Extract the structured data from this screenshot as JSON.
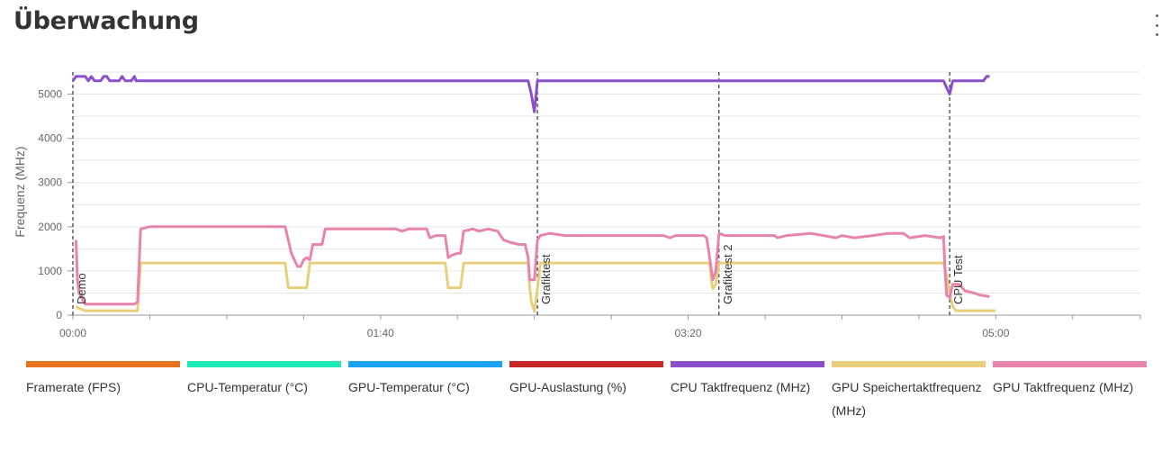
{
  "page": {
    "title": "Überwachung",
    "menu_icon": "more-vertical-icon"
  },
  "chart_data": {
    "type": "line",
    "title": "",
    "xlabel": "",
    "ylabel": "Frequenz (MHz)",
    "x_unit": "seconds",
    "xlim": [
      0,
      347
    ],
    "ylim": [
      0,
      5500
    ],
    "x_ticks": [
      {
        "value": 0,
        "label": "00:00"
      },
      {
        "value": 100,
        "label": "01:40"
      },
      {
        "value": 200,
        "label": "03:20"
      },
      {
        "value": 300,
        "label": "05:00"
      }
    ],
    "y_ticks": [
      {
        "value": 0,
        "label": "0"
      },
      {
        "value": 1000,
        "label": "1000"
      },
      {
        "value": 2000,
        "label": "2000"
      },
      {
        "value": 3000,
        "label": "3000"
      },
      {
        "value": 4000,
        "label": "4000"
      },
      {
        "value": 5000,
        "label": "5000"
      }
    ],
    "grid": true,
    "legend_position": "bottom",
    "markers": [
      {
        "x": 0,
        "label": "Demo"
      },
      {
        "x": 151,
        "label": "Grafiktest"
      },
      {
        "x": 210,
        "label": "Grafiktest 2"
      },
      {
        "x": 285,
        "label": "CPU Test"
      }
    ],
    "series": [
      {
        "name": "Framerate (FPS)",
        "color": "#e8731f",
        "visible": false,
        "points": []
      },
      {
        "name": "CPU-Temperatur (°C)",
        "color": "#1de9b6",
        "visible": false,
        "points": []
      },
      {
        "name": "GPU-Temperatur (°C)",
        "color": "#1aa3f0",
        "visible": false,
        "points": []
      },
      {
        "name": "GPU-Auslastung (%)",
        "color": "#c62828",
        "visible": false,
        "points": []
      },
      {
        "name": "CPU Taktfrequenz (MHz)",
        "color": "#8a4fc9",
        "visible": true,
        "points": [
          [
            0,
            5300
          ],
          [
            1,
            5400
          ],
          [
            4,
            5400
          ],
          [
            5,
            5300
          ],
          [
            6,
            5400
          ],
          [
            7,
            5300
          ],
          [
            9,
            5300
          ],
          [
            10,
            5400
          ],
          [
            11,
            5400
          ],
          [
            12,
            5300
          ],
          [
            15,
            5300
          ],
          [
            16,
            5400
          ],
          [
            17,
            5300
          ],
          [
            19,
            5300
          ],
          [
            20,
            5400
          ],
          [
            20.5,
            5300
          ],
          [
            60,
            5300
          ],
          [
            100,
            5300
          ],
          [
            140,
            5300
          ],
          [
            148,
            5300
          ],
          [
            149,
            5000
          ],
          [
            150,
            4600
          ],
          [
            151,
            5300
          ],
          [
            200,
            5300
          ],
          [
            250,
            5300
          ],
          [
            283,
            5300
          ],
          [
            284,
            5150
          ],
          [
            285,
            5000
          ],
          [
            286,
            5300
          ],
          [
            294,
            5300
          ],
          [
            296,
            5300
          ],
          [
            297,
            5400
          ],
          [
            298,
            5400
          ]
        ]
      },
      {
        "name": "GPU Speichertaktfrequenz (MHz)",
        "color": "#e8cf7d",
        "visible": true,
        "points": [
          [
            1,
            200
          ],
          [
            2,
            150
          ],
          [
            4,
            100
          ],
          [
            21,
            100
          ],
          [
            22,
            1180
          ],
          [
            30,
            1180
          ],
          [
            60,
            1180
          ],
          [
            69,
            1180
          ],
          [
            70,
            620
          ],
          [
            76,
            620
          ],
          [
            77,
            1180
          ],
          [
            100,
            1180
          ],
          [
            121,
            1180
          ],
          [
            122,
            620
          ],
          [
            126,
            620
          ],
          [
            127,
            1180
          ],
          [
            148,
            1180
          ],
          [
            148.5,
            600
          ],
          [
            149,
            300
          ],
          [
            150,
            80
          ],
          [
            151,
            600
          ],
          [
            152,
            1180
          ],
          [
            180,
            1180
          ],
          [
            207,
            1180
          ],
          [
            207.5,
            800
          ],
          [
            208,
            600
          ],
          [
            209,
            700
          ],
          [
            210,
            1180
          ],
          [
            250,
            1180
          ],
          [
            283,
            1180
          ],
          [
            284,
            900
          ],
          [
            285,
            500
          ],
          [
            286,
            200
          ],
          [
            287,
            100
          ],
          [
            300,
            100
          ]
        ]
      },
      {
        "name": "GPU Taktfrequenz (MHz)",
        "color": "#e884ac",
        "visible": true,
        "points": [
          [
            1,
            1700
          ],
          [
            1.5,
            800
          ],
          [
            2,
            500
          ],
          [
            4,
            250
          ],
          [
            20,
            250
          ],
          [
            21,
            300
          ],
          [
            22,
            1950
          ],
          [
            25,
            2000
          ],
          [
            30,
            2000
          ],
          [
            45,
            2000
          ],
          [
            69,
            2000
          ],
          [
            70,
            1700
          ],
          [
            71,
            1400
          ],
          [
            72,
            1250
          ],
          [
            73,
            1100
          ],
          [
            74,
            1100
          ],
          [
            75,
            1250
          ],
          [
            76,
            1300
          ],
          [
            77,
            1250
          ],
          [
            78,
            1600
          ],
          [
            81,
            1600
          ],
          [
            82,
            1950
          ],
          [
            90,
            1950
          ],
          [
            100,
            1950
          ],
          [
            105,
            1950
          ],
          [
            107,
            1900
          ],
          [
            109,
            1950
          ],
          [
            115,
            1950
          ],
          [
            116,
            1750
          ],
          [
            118,
            1800
          ],
          [
            121,
            1800
          ],
          [
            122,
            1300
          ],
          [
            123,
            1350
          ],
          [
            125,
            1400
          ],
          [
            126,
            1400
          ],
          [
            127,
            1900
          ],
          [
            130,
            1950
          ],
          [
            132,
            1900
          ],
          [
            135,
            1950
          ],
          [
            138,
            1900
          ],
          [
            140,
            1700
          ],
          [
            142,
            1650
          ],
          [
            145,
            1600
          ],
          [
            147,
            1600
          ],
          [
            148,
            1300
          ],
          [
            148.5,
            800
          ],
          [
            150,
            800
          ],
          [
            151,
            1700
          ],
          [
            152,
            1800
          ],
          [
            155,
            1850
          ],
          [
            160,
            1800
          ],
          [
            170,
            1800
          ],
          [
            180,
            1800
          ],
          [
            192,
            1800
          ],
          [
            194,
            1750
          ],
          [
            196,
            1800
          ],
          [
            200,
            1800
          ],
          [
            205,
            1800
          ],
          [
            206,
            1750
          ],
          [
            207,
            1300
          ],
          [
            208,
            800
          ],
          [
            209,
            1000
          ],
          [
            210,
            1850
          ],
          [
            212,
            1800
          ],
          [
            220,
            1800
          ],
          [
            228,
            1800
          ],
          [
            229,
            1750
          ],
          [
            232,
            1800
          ],
          [
            240,
            1850
          ],
          [
            248,
            1750
          ],
          [
            250,
            1800
          ],
          [
            254,
            1750
          ],
          [
            260,
            1800
          ],
          [
            265,
            1850
          ],
          [
            270,
            1850
          ],
          [
            272,
            1750
          ],
          [
            277,
            1800
          ],
          [
            282,
            1750
          ],
          [
            283,
            1780
          ],
          [
            283.5,
            1000
          ],
          [
            284,
            450
          ],
          [
            285,
            400
          ],
          [
            286,
            700
          ],
          [
            288,
            700
          ],
          [
            290,
            550
          ],
          [
            293,
            500
          ],
          [
            295,
            450
          ],
          [
            298,
            420
          ]
        ]
      }
    ]
  }
}
